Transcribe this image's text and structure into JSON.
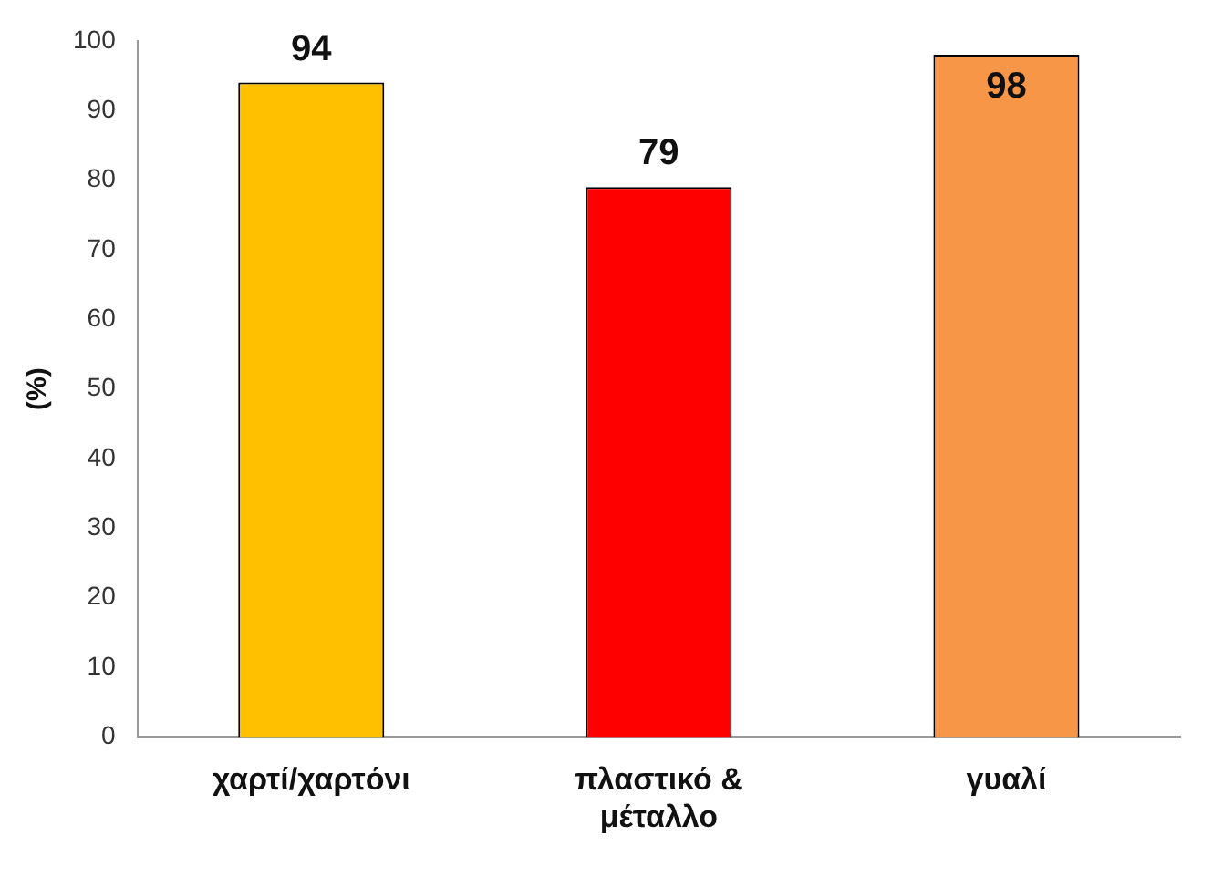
{
  "chart_data": {
    "type": "bar",
    "ylabel": "(%)",
    "categories": [
      "χαρτί/χαρτόνι",
      "πλαστικό & μέταλλο",
      "γυαλί"
    ],
    "values": [
      94,
      79,
      98
    ],
    "colors": [
      "#ffc000",
      "#ff0000",
      "#f79646"
    ],
    "ylim": [
      0,
      100
    ],
    "yticks": [
      0,
      10,
      20,
      30,
      40,
      50,
      60,
      70,
      80,
      90,
      100
    ],
    "grid": false,
    "legend": false,
    "data_labels": true
  }
}
